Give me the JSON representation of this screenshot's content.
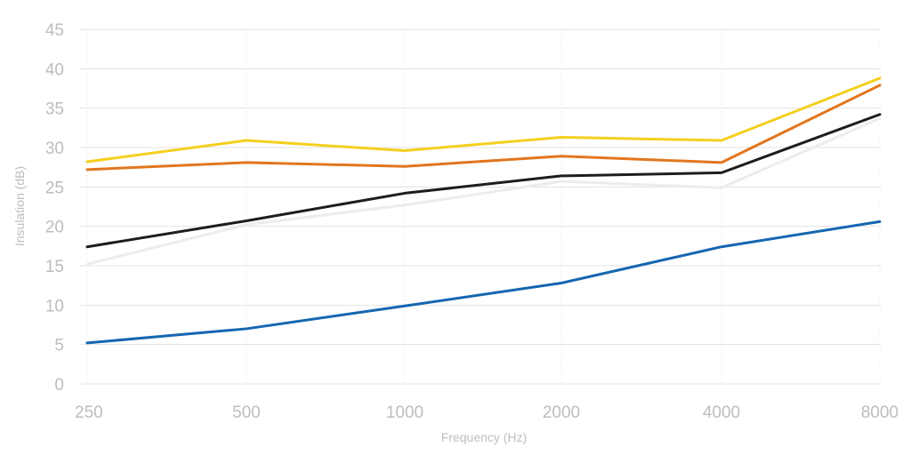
{
  "chart_data": {
    "type": "line",
    "title": "",
    "xlabel": "Frequency (Hz)",
    "ylabel": "Insulation (dB)",
    "x": [
      "250",
      "500",
      "1000",
      "2000",
      "4000",
      "8000"
    ],
    "ylim": [
      0,
      45
    ],
    "yticks": [
      "0",
      "5",
      "10",
      "15",
      "20",
      "25",
      "30",
      "35",
      "40",
      "45"
    ],
    "grid": true,
    "legend": "none",
    "series": [
      {
        "color": "#ececec",
        "values": [
          15.2,
          20.2,
          22.7,
          25.7,
          24.9,
          33.7
        ]
      },
      {
        "color": "#f5cf1d",
        "values": [
          28.2,
          30.9,
          29.6,
          31.3,
          30.9,
          38.8
        ]
      },
      {
        "color": "#e2761e",
        "values": [
          27.2,
          28.1,
          27.6,
          28.9,
          28.1,
          37.9
        ]
      },
      {
        "color": "#1d1d1b",
        "values": [
          17.4,
          20.7,
          24.2,
          26.4,
          26.8,
          34.2
        ]
      },
      {
        "color": "#1566b0",
        "values": [
          5.2,
          7.0,
          9.9,
          12.8,
          17.4,
          20.6
        ]
      }
    ]
  }
}
